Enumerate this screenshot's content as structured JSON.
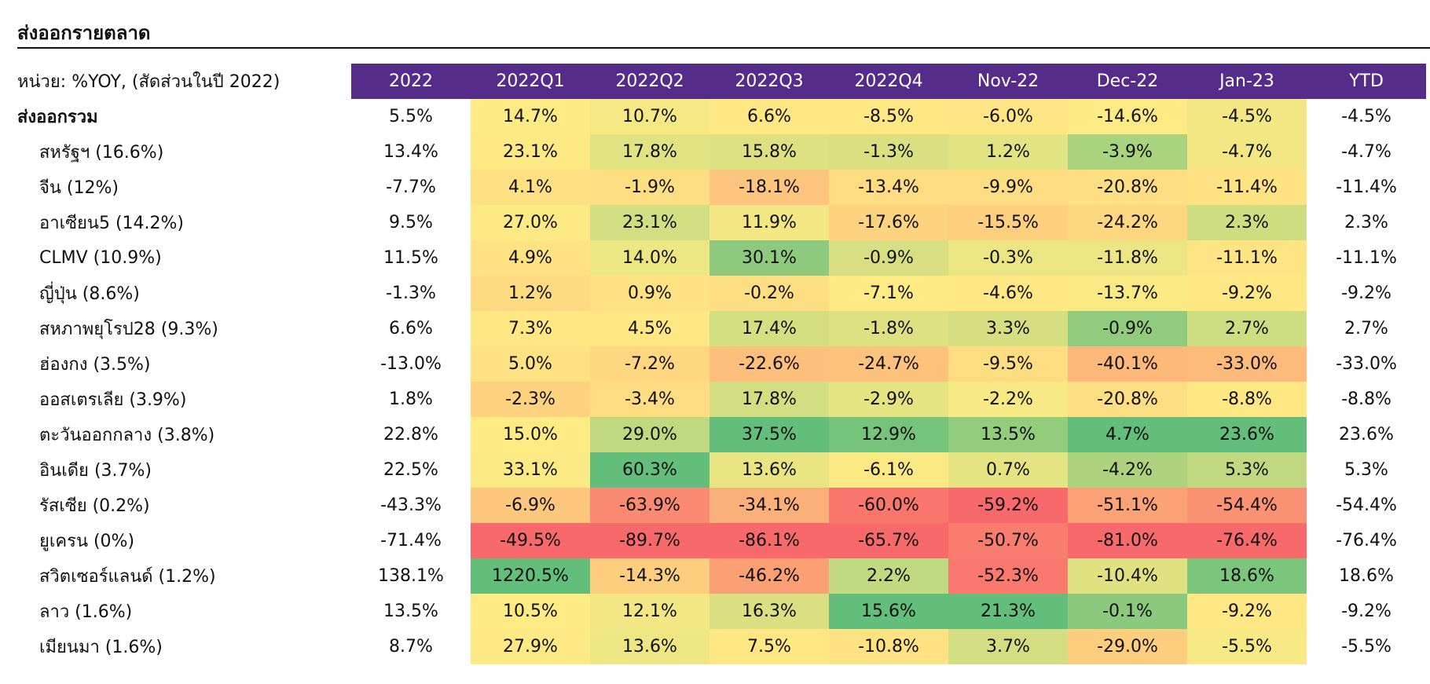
{
  "title": "ส่งออกรายตลาด",
  "chart_data": {
    "type": "heatmap",
    "unit_label": "หน่วย: %YOY, (สัดส่วนในปี 2022)",
    "columns": [
      "2022",
      "2022Q1",
      "2022Q2",
      "2022Q3",
      "2022Q4",
      "Nov-22",
      "Dec-22",
      "Jan-23",
      "YTD"
    ],
    "colored_columns": [
      1,
      2,
      3,
      4,
      5,
      6,
      7
    ],
    "color_scale": {
      "low": "#f8696b",
      "mid": "#ffeb84",
      "high": "#63be7b"
    },
    "header_color": "#552c8a",
    "rows": [
      {
        "label": "ส่งออกรวม",
        "values": [
          5.5,
          14.7,
          10.7,
          6.6,
          -8.5,
          -6.0,
          -14.6,
          -4.5,
          -4.5
        ]
      },
      {
        "label": "สหรัฐฯ (16.6%)",
        "values": [
          13.4,
          23.1,
          17.8,
          15.8,
          -1.3,
          1.2,
          -3.9,
          -4.7,
          -4.7
        ]
      },
      {
        "label": "จีน (12%)",
        "values": [
          -7.7,
          4.1,
          -1.9,
          -18.1,
          -13.4,
          -9.9,
          -20.8,
          -11.4,
          -11.4
        ]
      },
      {
        "label": "อาเซียน5 (14.2%)",
        "values": [
          9.5,
          27.0,
          23.1,
          11.9,
          -17.6,
          -15.5,
          -24.2,
          2.3,
          2.3
        ]
      },
      {
        "label": "CLMV (10.9%)",
        "values": [
          11.5,
          4.9,
          14.0,
          30.1,
          -0.9,
          -0.3,
          -11.8,
          -11.1,
          -11.1
        ]
      },
      {
        "label": "ญี่ปุ่น (8.6%)",
        "values": [
          -1.3,
          1.2,
          0.9,
          -0.2,
          -7.1,
          -4.6,
          -13.7,
          -9.2,
          -9.2
        ]
      },
      {
        "label": "สหภาพยุโรป28 (9.3%)",
        "values": [
          6.6,
          7.3,
          4.5,
          17.4,
          -1.8,
          3.3,
          -0.9,
          2.7,
          2.7
        ]
      },
      {
        "label": "ฮ่องกง (3.5%)",
        "values": [
          -13.0,
          5.0,
          -7.2,
          -22.6,
          -24.7,
          -9.5,
          -40.1,
          -33.0,
          -33.0
        ]
      },
      {
        "label": "ออสเตรเลีย (3.9%)",
        "values": [
          1.8,
          -2.3,
          -3.4,
          17.8,
          -2.9,
          -2.2,
          -20.8,
          -8.8,
          -8.8
        ]
      },
      {
        "label": "ตะวันออกกลาง (3.8%)",
        "values": [
          22.8,
          15.0,
          29.0,
          37.5,
          12.9,
          13.5,
          4.7,
          23.6,
          23.6
        ]
      },
      {
        "label": "อินเดีย (3.7%)",
        "values": [
          22.5,
          33.1,
          60.3,
          13.6,
          -6.1,
          0.7,
          -4.2,
          5.3,
          5.3
        ]
      },
      {
        "label": "รัสเซีย (0.2%)",
        "values": [
          -43.3,
          -6.9,
          -63.9,
          -34.1,
          -60.0,
          -59.2,
          -51.1,
          -54.4,
          -54.4
        ]
      },
      {
        "label": "ยูเครน (0%)",
        "values": [
          -71.4,
          -49.5,
          -89.7,
          -86.1,
          -65.7,
          -50.7,
          -81.0,
          -76.4,
          -76.4
        ]
      },
      {
        "label": "สวิตเซอร์แลนด์ (1.2%)",
        "values": [
          138.1,
          1220.5,
          -14.3,
          -46.2,
          2.2,
          -52.3,
          -10.4,
          18.6,
          18.6
        ]
      },
      {
        "label": "ลาว (1.6%)",
        "values": [
          13.5,
          10.5,
          12.1,
          16.3,
          15.6,
          21.3,
          -0.1,
          -9.2,
          -9.2
        ]
      },
      {
        "label": "เมียนมา (1.6%)",
        "values": [
          8.7,
          27.9,
          13.6,
          7.5,
          -10.8,
          3.7,
          -29.0,
          -5.5,
          -5.5
        ]
      }
    ]
  }
}
